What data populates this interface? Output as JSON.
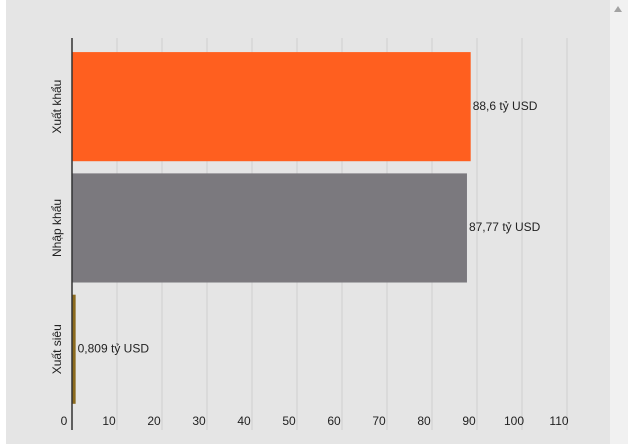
{
  "chart_data": {
    "type": "bar",
    "orientation": "horizontal",
    "categories": [
      "Xuất khẩu",
      "Nhập khẩu",
      "Xuất siêu"
    ],
    "values": [
      88.6,
      87.77,
      0.809
    ],
    "value_labels": [
      "88,6 tỷ USD",
      "87,77 tỷ USD",
      "0,809 tỷ USD"
    ],
    "colors": [
      "#ff5f1f",
      "#7b797e",
      "#8b6a1e"
    ],
    "xlim": [
      0,
      110
    ],
    "xticks": [
      0,
      10,
      20,
      30,
      40,
      50,
      60,
      70,
      80,
      90,
      100,
      110
    ],
    "grid": true
  }
}
